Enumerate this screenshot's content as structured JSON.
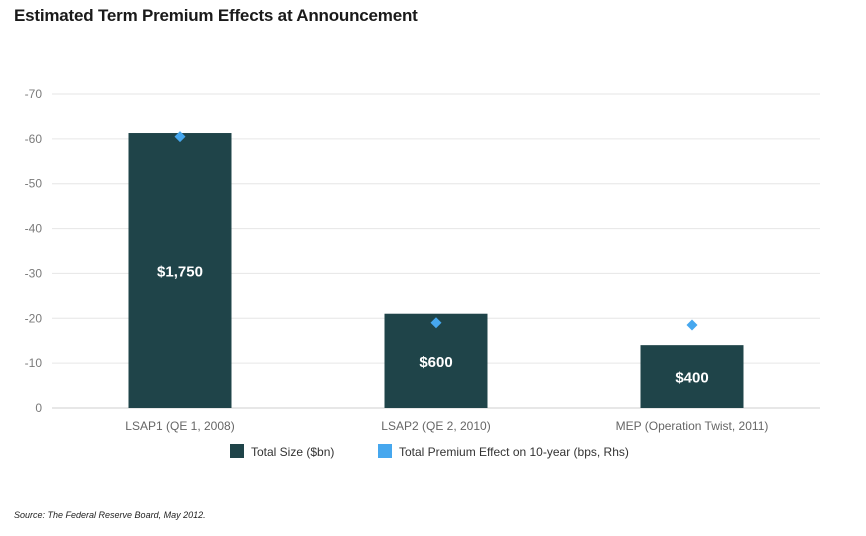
{
  "title": "Estimated Term Premium Effects at Announcement",
  "source": "Source: The Federal Reserve Board, May 2012.",
  "colors": {
    "bar": "#1f4449",
    "marker": "#46a7ee",
    "grid": "#e6e6e6",
    "axis": "#cfcfcf"
  },
  "chart_data": {
    "type": "bar",
    "categories": [
      "LSAP1 (QE 1, 2008)",
      "LSAP2 (QE 2, 2010)",
      "MEP (Operation Twist, 2011)"
    ],
    "yticks": [
      "-70",
      "-60",
      "-50",
      "-40",
      "-30",
      "-20",
      "-10",
      "0"
    ],
    "ylim": [
      0,
      -70
    ],
    "series": [
      {
        "name": "Total Size ($bn)",
        "type": "bar",
        "values": [
          1750,
          600,
          400
        ],
        "labels": [
          "$1,750",
          "$600",
          "$400"
        ]
      },
      {
        "name": "Total Premium Effect on 10-year (bps, Rhs)",
        "type": "scatter",
        "values": [
          -60.5,
          -19,
          -18.5
        ]
      }
    ],
    "legend": "bottom",
    "grid": true
  }
}
